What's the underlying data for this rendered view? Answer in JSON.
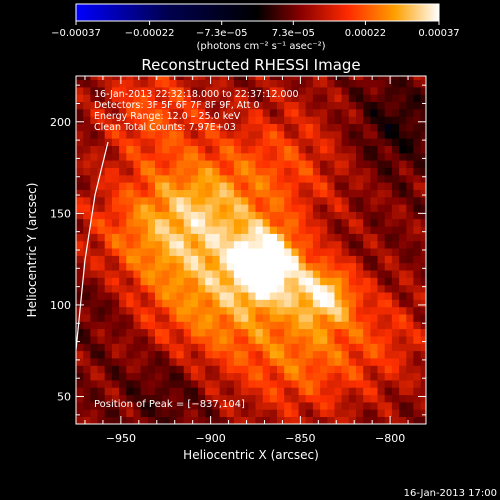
{
  "colorbar": {
    "tick_labels": [
      "−0.00037",
      "−0.00022",
      "−7.3e−05",
      "7.3e−05",
      "0.00022",
      "0.00037"
    ],
    "units_label": "(photons cm⁻² s⁻¹ asec⁻²)",
    "range": [
      -0.00037,
      0.00037
    ]
  },
  "plot": {
    "title": "Reconstructed RHESSI Image",
    "x_axis_label": "Heliocentric X (arcsec)",
    "y_axis_label": "Heliocentric Y (arcsec)",
    "x_ticks": [
      "−950",
      "−900",
      "−850",
      "−800"
    ],
    "y_ticks": [
      "50",
      "100",
      "150",
      "200"
    ],
    "info_lines": [
      "16-Jan-2013 22:32:18.000 to 22:37:12.000",
      "Detectors: 3F 5F 6F 7F 8F 9F, Att 0",
      "Energy Range: 12.0 – 25.0 keV",
      "Clean    Total Counts: 7.97E+03"
    ],
    "peak_label": "Position of Peak = [−837,104]"
  },
  "footer": {
    "timestamp": "16-Jan-2013 17:00"
  },
  "chart_data": {
    "type": "heatmap",
    "title": "Reconstructed RHESSI Image",
    "xlabel": "Heliocentric X (arcsec)",
    "ylabel": "Heliocentric Y (arcsec)",
    "xlim": [
      -975,
      -780
    ],
    "ylim": [
      35,
      225
    ],
    "peak": [
      -837,
      104
    ],
    "x_ticks": [
      -950,
      -900,
      -850,
      -800
    ],
    "y_ticks": [
      50,
      100,
      150,
      200
    ],
    "colorbar_range": [
      -0.00037,
      0.00037
    ],
    "colormap": [
      "#0000ff",
      "#000060",
      "#000000",
      "#7a0000",
      "#ff3000",
      "#ffa000",
      "#ffffff"
    ],
    "background_color": "#000000",
    "foreground_color": "#ffffff"
  }
}
